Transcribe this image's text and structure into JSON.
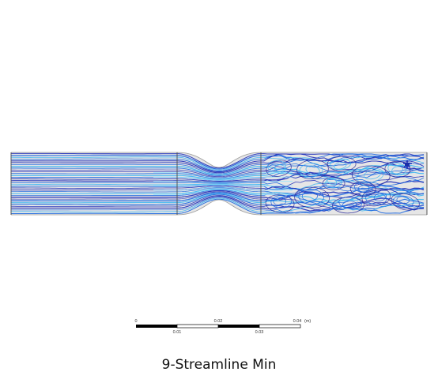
{
  "caption": "9-Streamline Min",
  "scale_bar": {
    "top_labels": [
      "0",
      "0.02",
      "0.04"
    ],
    "bottom_labels": [
      "0.01",
      "0.03"
    ],
    "unit": "(m)"
  },
  "colors": {
    "streamline_deep": "#1f2fb8",
    "streamline_mid": "#1a66e0",
    "streamline_light": "#3fb6f0",
    "throat_highlight": "#8fe3ff",
    "vortex": "#2a2a9a",
    "wall": "#5a5a5a",
    "channel_fill": "#e6e6e6"
  }
}
